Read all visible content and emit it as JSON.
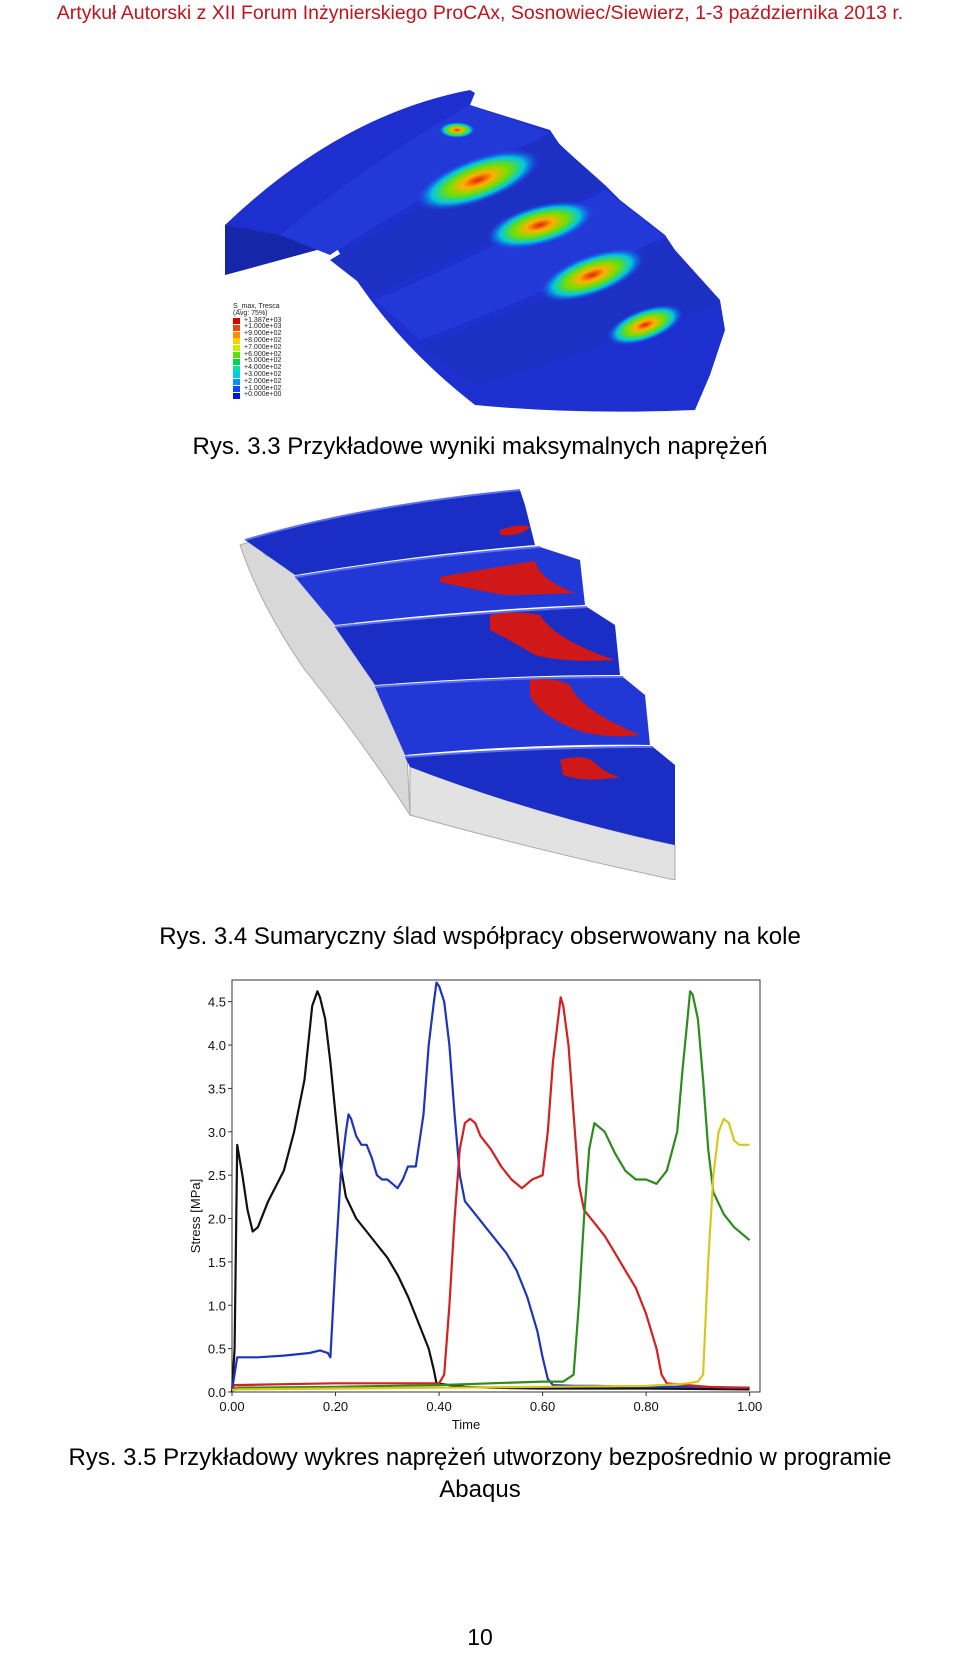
{
  "header": "Artykuł Autorski z XII Forum Inżynierskiego ProCAx, Sosnowiec/Siewierz, 1-3 października 2013 r.",
  "figure_3_3": {
    "caption": "Rys. 3.3 Przykładowe wyniki maksymalnych naprężeń",
    "legend_title": "S_max, Tresca",
    "legend_subtitle": "(Avg: 75%)",
    "legend_entries": [
      {
        "label": "+1.387e+03",
        "color": "#d60000"
      },
      {
        "label": "+1.000e+03",
        "color": "#e84800"
      },
      {
        "label": "+9.000e+02",
        "color": "#ff8c00"
      },
      {
        "label": "+8.000e+02",
        "color": "#ffd000"
      },
      {
        "label": "+7.000e+02",
        "color": "#c8f000"
      },
      {
        "label": "+6.000e+02",
        "color": "#5ce000"
      },
      {
        "label": "+5.000e+02",
        "color": "#00d84a"
      },
      {
        "label": "+4.000e+02",
        "color": "#00e0b0"
      },
      {
        "label": "+3.000e+02",
        "color": "#00c8f0"
      },
      {
        "label": "+2.000e+02",
        "color": "#0090ff"
      },
      {
        "label": "+1.000e+02",
        "color": "#1048f0"
      },
      {
        "label": "+0.000e+00",
        "color": "#0018c8"
      }
    ]
  },
  "figure_3_4": {
    "caption": "Rys. 3.4 Sumaryczny ślad współpracy obserwowany na kole"
  },
  "figure_3_5": {
    "caption_line1": "Rys. 3.5 Przykładowy wykres naprężeń utworzony bezpośrednio w programie",
    "caption_line2": "Abaqus"
  },
  "chart_data": {
    "type": "line",
    "xlabel": "Time",
    "ylabel": "Stress [MPa]",
    "xlim": [
      0,
      1.02
    ],
    "ylim": [
      0,
      4.75
    ],
    "xticks": [
      "0.00",
      "0.20",
      "0.40",
      "0.60",
      "0.80",
      "1.00"
    ],
    "xtick_values": [
      0,
      0.2,
      0.4,
      0.6,
      0.8,
      1.0
    ],
    "yticks": [
      "0.0",
      "0.5",
      "1.0",
      "1.5",
      "2.0",
      "2.5",
      "3.0",
      "3.5",
      "4.0",
      "4.5"
    ],
    "ytick_values": [
      0,
      0.5,
      1.0,
      1.5,
      2.0,
      2.5,
      3.0,
      3.5,
      4.0,
      4.5
    ],
    "series": [
      {
        "color": "#111111",
        "points": [
          [
            0,
            0
          ],
          [
            0.005,
            0.5
          ],
          [
            0.01,
            2.85
          ],
          [
            0.02,
            2.5
          ],
          [
            0.03,
            2.1
          ],
          [
            0.04,
            1.85
          ],
          [
            0.05,
            1.9
          ],
          [
            0.07,
            2.2
          ],
          [
            0.1,
            2.55
          ],
          [
            0.12,
            3.0
          ],
          [
            0.14,
            3.6
          ],
          [
            0.155,
            4.45
          ],
          [
            0.165,
            4.62
          ],
          [
            0.17,
            4.55
          ],
          [
            0.18,
            4.3
          ],
          [
            0.19,
            3.8
          ],
          [
            0.2,
            3.2
          ],
          [
            0.21,
            2.6
          ],
          [
            0.22,
            2.25
          ],
          [
            0.24,
            2.0
          ],
          [
            0.26,
            1.85
          ],
          [
            0.28,
            1.7
          ],
          [
            0.3,
            1.55
          ],
          [
            0.32,
            1.35
          ],
          [
            0.34,
            1.1
          ],
          [
            0.36,
            0.8
          ],
          [
            0.38,
            0.5
          ],
          [
            0.39,
            0.25
          ],
          [
            0.395,
            0.1
          ],
          [
            0.42,
            0.08
          ],
          [
            0.45,
            0.06
          ],
          [
            0.5,
            0.05
          ],
          [
            0.6,
            0.04
          ],
          [
            0.8,
            0.04
          ],
          [
            1.0,
            0.03
          ]
        ]
      },
      {
        "color": "#1f35b8",
        "points": [
          [
            0,
            0.02
          ],
          [
            0.01,
            0.4
          ],
          [
            0.05,
            0.4
          ],
          [
            0.1,
            0.42
          ],
          [
            0.15,
            0.45
          ],
          [
            0.17,
            0.48
          ],
          [
            0.185,
            0.45
          ],
          [
            0.19,
            0.4
          ],
          [
            0.2,
            1.5
          ],
          [
            0.21,
            2.5
          ],
          [
            0.22,
            3.0
          ],
          [
            0.225,
            3.2
          ],
          [
            0.23,
            3.15
          ],
          [
            0.24,
            2.95
          ],
          [
            0.25,
            2.85
          ],
          [
            0.26,
            2.85
          ],
          [
            0.27,
            2.7
          ],
          [
            0.28,
            2.5
          ],
          [
            0.29,
            2.45
          ],
          [
            0.3,
            2.45
          ],
          [
            0.31,
            2.4
          ],
          [
            0.32,
            2.35
          ],
          [
            0.33,
            2.45
          ],
          [
            0.34,
            2.6
          ],
          [
            0.355,
            2.6
          ],
          [
            0.37,
            3.2
          ],
          [
            0.38,
            4.0
          ],
          [
            0.39,
            4.5
          ],
          [
            0.395,
            4.72
          ],
          [
            0.4,
            4.68
          ],
          [
            0.41,
            4.5
          ],
          [
            0.42,
            4.0
          ],
          [
            0.43,
            3.2
          ],
          [
            0.44,
            2.5
          ],
          [
            0.45,
            2.2
          ],
          [
            0.47,
            2.05
          ],
          [
            0.49,
            1.9
          ],
          [
            0.51,
            1.75
          ],
          [
            0.53,
            1.6
          ],
          [
            0.55,
            1.4
          ],
          [
            0.57,
            1.1
          ],
          [
            0.59,
            0.7
          ],
          [
            0.6,
            0.4
          ],
          [
            0.61,
            0.15
          ],
          [
            0.62,
            0.08
          ],
          [
            0.66,
            0.07
          ],
          [
            0.7,
            0.07
          ],
          [
            0.8,
            0.06
          ],
          [
            0.9,
            0.06
          ],
          [
            1.0,
            0.05
          ]
        ]
      },
      {
        "color": "#d42020",
        "points": [
          [
            0,
            0.02
          ],
          [
            0.005,
            0.08
          ],
          [
            0.1,
            0.09
          ],
          [
            0.2,
            0.1
          ],
          [
            0.3,
            0.1
          ],
          [
            0.38,
            0.1
          ],
          [
            0.4,
            0.1
          ],
          [
            0.41,
            0.2
          ],
          [
            0.42,
            1.0
          ],
          [
            0.43,
            2.0
          ],
          [
            0.44,
            2.8
          ],
          [
            0.45,
            3.1
          ],
          [
            0.46,
            3.15
          ],
          [
            0.47,
            3.1
          ],
          [
            0.48,
            2.95
          ],
          [
            0.5,
            2.8
          ],
          [
            0.52,
            2.6
          ],
          [
            0.54,
            2.45
          ],
          [
            0.56,
            2.35
          ],
          [
            0.58,
            2.45
          ],
          [
            0.6,
            2.5
          ],
          [
            0.61,
            3.0
          ],
          [
            0.62,
            3.8
          ],
          [
            0.63,
            4.3
          ],
          [
            0.635,
            4.55
          ],
          [
            0.64,
            4.45
          ],
          [
            0.65,
            4.0
          ],
          [
            0.66,
            3.2
          ],
          [
            0.67,
            2.4
          ],
          [
            0.68,
            2.1
          ],
          [
            0.7,
            1.95
          ],
          [
            0.72,
            1.8
          ],
          [
            0.74,
            1.6
          ],
          [
            0.76,
            1.4
          ],
          [
            0.78,
            1.2
          ],
          [
            0.8,
            0.9
          ],
          [
            0.82,
            0.5
          ],
          [
            0.83,
            0.2
          ],
          [
            0.84,
            0.1
          ],
          [
            0.88,
            0.08
          ],
          [
            0.92,
            0.06
          ],
          [
            0.96,
            0.05
          ],
          [
            1.0,
            0.05
          ]
        ]
      },
      {
        "color": "#2e8b1e",
        "points": [
          [
            0,
            0.02
          ],
          [
            0.01,
            0.05
          ],
          [
            0.2,
            0.06
          ],
          [
            0.4,
            0.08
          ],
          [
            0.5,
            0.1
          ],
          [
            0.6,
            0.12
          ],
          [
            0.64,
            0.12
          ],
          [
            0.66,
            0.2
          ],
          [
            0.67,
            1.0
          ],
          [
            0.68,
            2.0
          ],
          [
            0.69,
            2.8
          ],
          [
            0.7,
            3.1
          ],
          [
            0.72,
            3.0
          ],
          [
            0.74,
            2.75
          ],
          [
            0.76,
            2.55
          ],
          [
            0.78,
            2.45
          ],
          [
            0.8,
            2.45
          ],
          [
            0.82,
            2.4
          ],
          [
            0.84,
            2.55
          ],
          [
            0.86,
            3.0
          ],
          [
            0.87,
            3.7
          ],
          [
            0.88,
            4.3
          ],
          [
            0.885,
            4.62
          ],
          [
            0.89,
            4.58
          ],
          [
            0.9,
            4.3
          ],
          [
            0.91,
            3.6
          ],
          [
            0.92,
            2.8
          ],
          [
            0.93,
            2.3
          ],
          [
            0.95,
            2.05
          ],
          [
            0.97,
            1.9
          ],
          [
            0.99,
            1.8
          ],
          [
            1.0,
            1.75
          ]
        ]
      },
      {
        "color": "#d8c81e",
        "points": [
          [
            0,
            0.02
          ],
          [
            0.01,
            0.03
          ],
          [
            0.2,
            0.04
          ],
          [
            0.4,
            0.05
          ],
          [
            0.6,
            0.06
          ],
          [
            0.8,
            0.07
          ],
          [
            0.86,
            0.09
          ],
          [
            0.88,
            0.1
          ],
          [
            0.9,
            0.12
          ],
          [
            0.91,
            0.2
          ],
          [
            0.92,
            1.5
          ],
          [
            0.93,
            2.5
          ],
          [
            0.94,
            3.0
          ],
          [
            0.95,
            3.15
          ],
          [
            0.96,
            3.1
          ],
          [
            0.97,
            2.9
          ],
          [
            0.98,
            2.85
          ],
          [
            1.0,
            2.85
          ]
        ]
      }
    ]
  }
}
